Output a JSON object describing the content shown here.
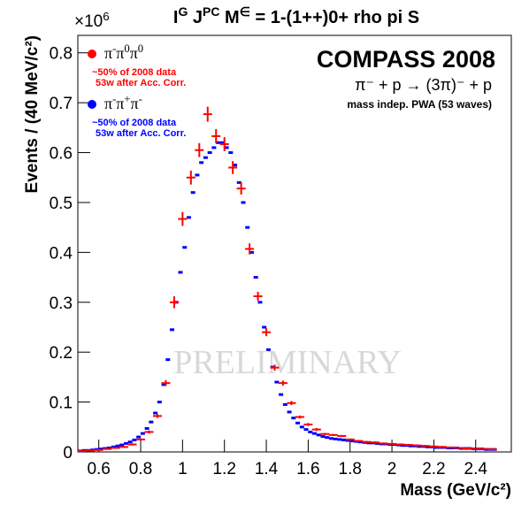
{
  "chart_data": {
    "type": "scatter",
    "title": [
      {
        "t": "I"
      },
      {
        "t": "G",
        "sup": true
      },
      {
        "t": " J"
      },
      {
        "t": "PC",
        "sup": true
      },
      {
        "t": " M"
      },
      {
        "t": "∈",
        "sup": true
      },
      {
        "t": " = 1-(1++)0+ rho pi S"
      }
    ],
    "x_label": "Mass (GeV/c²)",
    "y_label": "Events / (40 MeV/c²)",
    "y_multiplier": [
      {
        "t": "×10"
      },
      {
        "t": "6",
        "sup": true
      }
    ],
    "experiment": "COMPASS 2008",
    "reaction": "π⁻ + p  →  (3π)⁻ + p",
    "analysis": "mass indep. PWA (53 waves)",
    "watermark": "PRELIMINARY",
    "xlim": [
      0.5,
      2.57
    ],
    "ylim": [
      0,
      0.835
    ],
    "xticks": [
      0.6,
      0.8,
      1,
      1.2,
      1.4,
      1.6,
      1.8,
      2,
      2.2,
      2.4
    ],
    "yticks": [
      0,
      0.1,
      0.2,
      0.3,
      0.4,
      0.5,
      0.6,
      0.7,
      0.8
    ],
    "series": [
      {
        "name": [
          {
            "t": "π"
          },
          {
            "t": "-",
            "sup": true
          },
          {
            "t": "π"
          },
          {
            "t": "0",
            "sup": true
          },
          {
            "t": "π"
          },
          {
            "t": "0",
            "sup": true
          }
        ],
        "note": [
          "~50% of 2008 data",
          "53w after Acc. Corr."
        ],
        "color": "#ff0000",
        "marker": "cross",
        "x": [
          0.52,
          0.56,
          0.6,
          0.64,
          0.68,
          0.72,
          0.76,
          0.8,
          0.84,
          0.88,
          0.92,
          0.96,
          1.0,
          1.04,
          1.08,
          1.12,
          1.16,
          1.2,
          1.24,
          1.28,
          1.32,
          1.36,
          1.4,
          1.44,
          1.48,
          1.52,
          1.56,
          1.6,
          1.64,
          1.68,
          1.72,
          1.76,
          1.8,
          1.84,
          1.88,
          1.92,
          1.96,
          2.0,
          2.04,
          2.08,
          2.12,
          2.16,
          2.2,
          2.24,
          2.28,
          2.32,
          2.36,
          2.4,
          2.44,
          2.48
        ],
        "values": [
          0.002,
          0.003,
          0.004,
          0.006,
          0.008,
          0.01,
          0.015,
          0.025,
          0.04,
          0.072,
          0.138,
          0.3,
          0.467,
          0.55,
          0.605,
          0.677,
          0.633,
          0.617,
          0.57,
          0.528,
          0.407,
          0.312,
          0.24,
          0.169,
          0.138,
          0.098,
          0.07,
          0.055,
          0.045,
          0.036,
          0.034,
          0.032,
          0.025,
          0.022,
          0.02,
          0.019,
          0.017,
          0.016,
          0.015,
          0.014,
          0.013,
          0.012,
          0.011,
          0.01,
          0.009,
          0.008,
          0.007,
          0.006,
          0.006,
          0.005
        ],
        "errors": [
          0.001,
          0.001,
          0.001,
          0.001,
          0.001,
          0.002,
          0.002,
          0.002,
          0.003,
          0.004,
          0.006,
          0.012,
          0.014,
          0.014,
          0.014,
          0.015,
          0.014,
          0.014,
          0.013,
          0.012,
          0.011,
          0.009,
          0.008,
          0.006,
          0.005,
          0.004,
          0.003,
          0.003,
          0.003,
          0.002,
          0.002,
          0.002,
          0.002,
          0.002,
          0.002,
          0.002,
          0.002,
          0.002,
          0.002,
          0.002,
          0.002,
          0.002,
          0.002,
          0.002,
          0.001,
          0.001,
          0.001,
          0.001,
          0.001,
          0.001
        ]
      },
      {
        "name": [
          {
            "t": "π"
          },
          {
            "t": "-",
            "sup": true
          },
          {
            "t": "π"
          },
          {
            "t": "+",
            "sup": true
          },
          {
            "t": "π"
          },
          {
            "t": "-",
            "sup": true
          }
        ],
        "note": [
          "~50% of 2008 data",
          "53w after Acc. Corr."
        ],
        "color": "#0000ff",
        "marker": "dash",
        "x": [
          0.51,
          0.53,
          0.55,
          0.57,
          0.59,
          0.61,
          0.63,
          0.65,
          0.67,
          0.69,
          0.71,
          0.73,
          0.75,
          0.77,
          0.79,
          0.81,
          0.83,
          0.85,
          0.87,
          0.89,
          0.91,
          0.93,
          0.95,
          0.97,
          0.99,
          1.01,
          1.03,
          1.05,
          1.07,
          1.09,
          1.11,
          1.13,
          1.15,
          1.17,
          1.19,
          1.21,
          1.23,
          1.25,
          1.27,
          1.29,
          1.31,
          1.33,
          1.35,
          1.37,
          1.39,
          1.41,
          1.43,
          1.45,
          1.47,
          1.49,
          1.51,
          1.53,
          1.55,
          1.57,
          1.59,
          1.61,
          1.63,
          1.65,
          1.67,
          1.69,
          1.71,
          1.73,
          1.75,
          1.77,
          1.79,
          1.81,
          1.83,
          1.85,
          1.87,
          1.89,
          1.91,
          1.93,
          1.95,
          1.97,
          1.99,
          2.01,
          2.03,
          2.05,
          2.07,
          2.09,
          2.11,
          2.13,
          2.15,
          2.17,
          2.19,
          2.21,
          2.23,
          2.25,
          2.27,
          2.29,
          2.31,
          2.33,
          2.35,
          2.37,
          2.39,
          2.41,
          2.43,
          2.45,
          2.47,
          2.49
        ],
        "values": [
          0.002,
          0.003,
          0.003,
          0.004,
          0.005,
          0.006,
          0.007,
          0.008,
          0.01,
          0.012,
          0.014,
          0.017,
          0.02,
          0.024,
          0.03,
          0.037,
          0.047,
          0.06,
          0.078,
          0.1,
          0.135,
          0.185,
          0.245,
          0.3,
          0.36,
          0.41,
          0.47,
          0.52,
          0.555,
          0.58,
          0.59,
          0.6,
          0.61,
          0.62,
          0.62,
          0.61,
          0.6,
          0.575,
          0.54,
          0.5,
          0.45,
          0.4,
          0.35,
          0.3,
          0.25,
          0.205,
          0.17,
          0.14,
          0.115,
          0.095,
          0.08,
          0.068,
          0.058,
          0.05,
          0.045,
          0.04,
          0.037,
          0.034,
          0.031,
          0.029,
          0.027,
          0.026,
          0.025,
          0.024,
          0.023,
          0.022,
          0.021,
          0.02,
          0.019,
          0.018,
          0.018,
          0.017,
          0.016,
          0.016,
          0.015,
          0.015,
          0.014,
          0.013,
          0.013,
          0.012,
          0.012,
          0.011,
          0.011,
          0.01,
          0.01,
          0.009,
          0.009,
          0.009,
          0.008,
          0.008,
          0.008,
          0.007,
          0.007,
          0.007,
          0.006,
          0.006,
          0.006,
          0.005,
          0.005,
          0.005
        ]
      }
    ]
  }
}
